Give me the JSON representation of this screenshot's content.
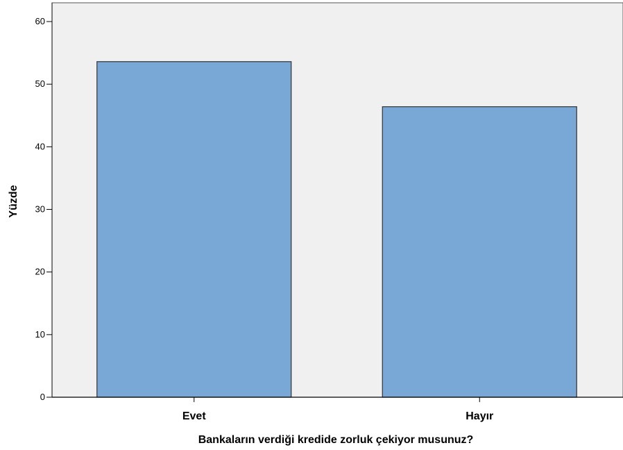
{
  "chart_data": {
    "type": "bar",
    "categories": [
      "Evet",
      "Hayır"
    ],
    "values": [
      53.6,
      46.4
    ],
    "xlabel": "Bankaların verdiği kredide zorluk çekiyor musunuz?",
    "ylabel": "Yüzde",
    "ylim": [
      0,
      63
    ],
    "yticks": [
      "0",
      "10",
      "20",
      "30",
      "40",
      "50",
      "60"
    ],
    "grid": false,
    "colors": {
      "plot_background": "#f0f0f0",
      "bar_fill": "#79a8d6",
      "bar_stroke": "#333333",
      "axis": "#000000"
    }
  }
}
